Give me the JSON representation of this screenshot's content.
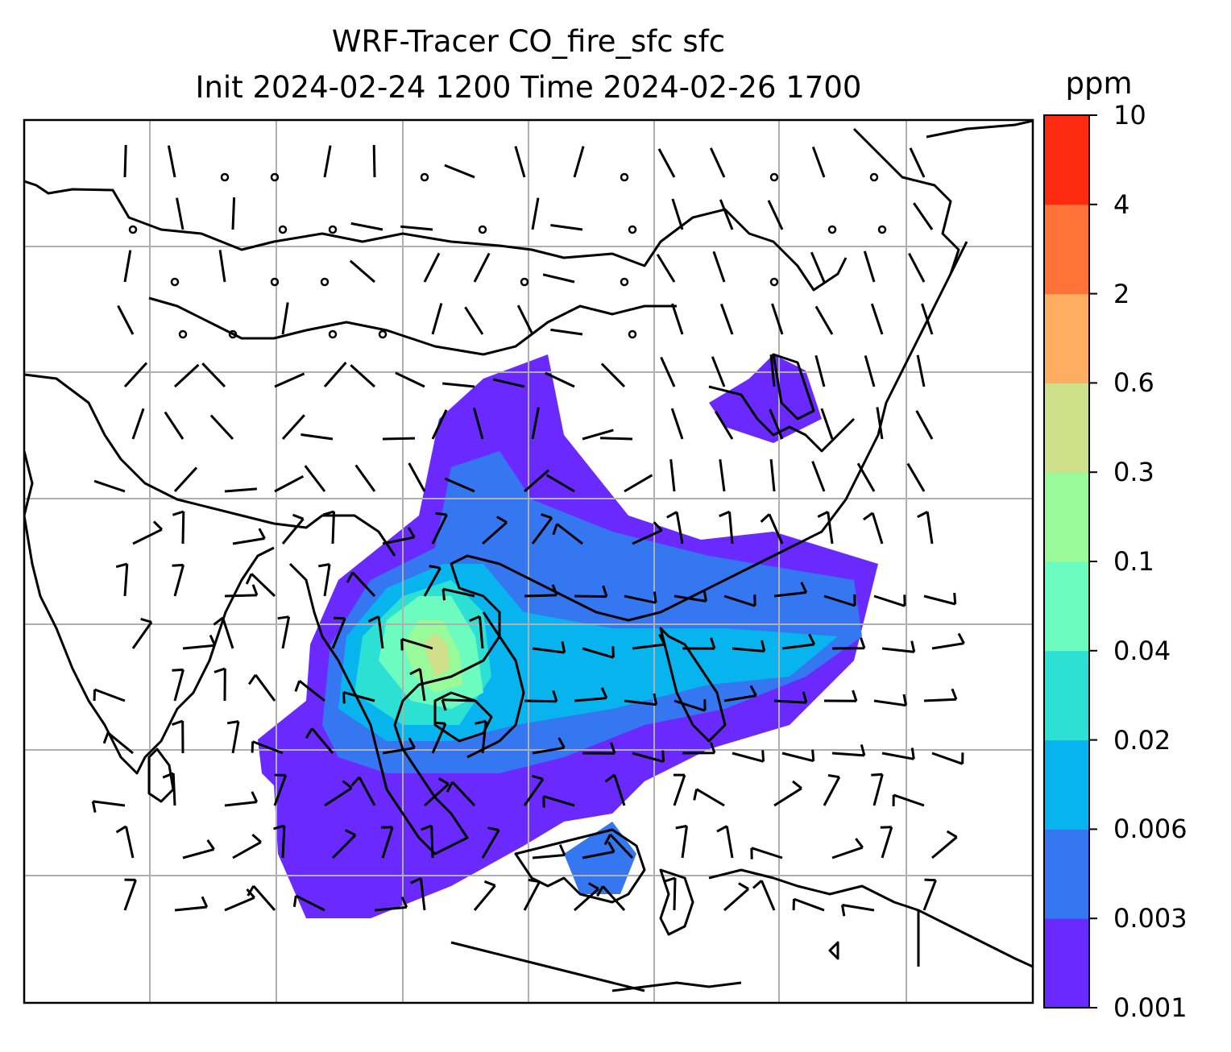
{
  "figure": {
    "title_line1": "WRF-Tracer CO_fire_sfc sfc",
    "title_line2": "Init 2024-02-24 1200 Time 2024-02-26 1700"
  },
  "colorbar": {
    "unit": "ppm",
    "levels": [
      "0.001",
      "0.003",
      "0.006",
      "0.02",
      "0.04",
      "0.1",
      "0.3",
      "0.6",
      "2",
      "4",
      "10"
    ],
    "colors": [
      "#6a2aff",
      "#3477f0",
      "#08b4ee",
      "#2de0d4",
      "#6cfcbf",
      "#98fa98",
      "#d0e08a",
      "#ffae61",
      "#ff7339",
      "#ff2a12"
    ]
  },
  "map": {
    "gridlines": true,
    "wind_symbols": "wind barbs; circles = calm",
    "field": "CO fire tracer concentration (ppm)"
  }
}
